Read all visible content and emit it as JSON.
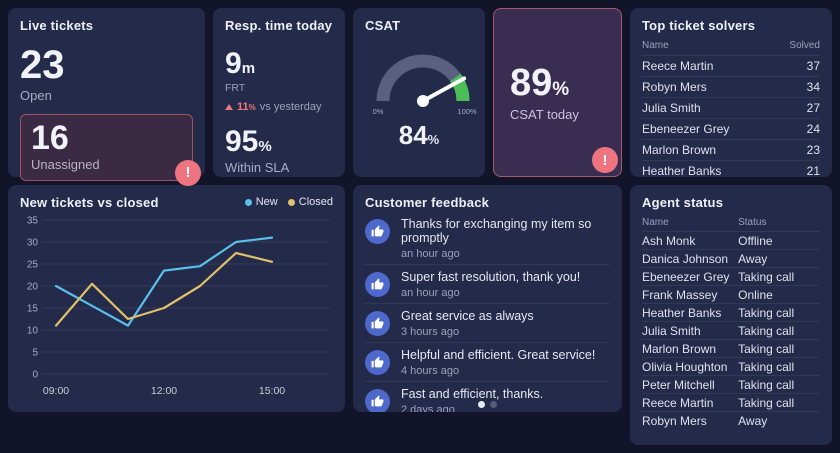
{
  "symbols": {
    "percent": "%",
    "alert": "!"
  },
  "cards": {
    "live_tickets": {
      "title": "Live tickets",
      "open_value": "23",
      "open_label": "Open",
      "unassigned_value": "16",
      "unassigned_label": "Unassigned"
    },
    "resp_time": {
      "title": "Resp. time today",
      "frt_value": "9",
      "frt_unit": "m",
      "frt_label": "FRT",
      "delta_value": "11",
      "delta_label": "vs yesterday",
      "sla_value": "95",
      "sla_label": "Within SLA"
    },
    "csat_today": {
      "value": "89",
      "label": "CSAT today"
    },
    "top_solvers": {
      "title": "Top ticket solvers",
      "columns": [
        "Name",
        "Solved"
      ],
      "rows": [
        [
          "Reece Martin",
          "37"
        ],
        [
          "Robyn Mers",
          "34"
        ],
        [
          "Julia Smith",
          "27"
        ],
        [
          "Ebeneezer Grey",
          "24"
        ],
        [
          "Marlon Brown",
          "23"
        ],
        [
          "Heather Banks",
          "21"
        ]
      ]
    },
    "feedback": {
      "title": "Customer feedback",
      "items": [
        {
          "text": "Thanks for exchanging my item so promptly",
          "time": "an hour ago"
        },
        {
          "text": "Super fast resolution, thank you!",
          "time": "an hour ago"
        },
        {
          "text": "Great service as always",
          "time": "3 hours ago"
        },
        {
          "text": "Helpful and efficient. Great service!",
          "time": "4 hours ago"
        },
        {
          "text": "Fast and efficient, thanks.",
          "time": "2 days ago"
        }
      ],
      "pagination": {
        "count": 2,
        "active": 0
      }
    },
    "agent_status": {
      "title": "Agent status",
      "columns": [
        "Name",
        "Status"
      ],
      "rows": [
        [
          "Ash Monk",
          "Offline"
        ],
        [
          "Danica Johnson",
          "Away"
        ],
        [
          "Ebeneezer Grey",
          "Taking call"
        ],
        [
          "Frank Massey",
          "Online"
        ],
        [
          "Heather Banks",
          "Taking call"
        ],
        [
          "Julia Smith",
          "Taking call"
        ],
        [
          "Marlon Brown",
          "Taking call"
        ],
        [
          "Olivia Houghton",
          "Taking call"
        ],
        [
          "Peter Mitchell",
          "Taking call"
        ],
        [
          "Reece Martin",
          "Taking call"
        ],
        [
          "Robyn Mers",
          "Away"
        ]
      ]
    }
  },
  "chart_data": [
    {
      "type": "line",
      "title": "New tickets vs closed",
      "x": [
        "09:00",
        "10:00",
        "11:00",
        "12:00",
        "13:00",
        "14:00",
        "15:00"
      ],
      "x_shown_ticks": [
        "09:00",
        "12:00",
        "15:00"
      ],
      "series": [
        {
          "name": "New",
          "color": "#58c0ea",
          "values": [
            20,
            15.5,
            11,
            23.5,
            24.5,
            30,
            31
          ]
        },
        {
          "name": "Closed",
          "color": "#dfc269",
          "values": [
            11,
            20.5,
            12.5,
            15,
            20,
            27.5,
            25.5
          ]
        }
      ],
      "ylim": [
        0,
        35
      ],
      "yticks": [
        0,
        5,
        10,
        15,
        20,
        25,
        30,
        35
      ],
      "grid": true,
      "legend_position": "top-right"
    },
    {
      "type": "gauge",
      "title": "CSAT",
      "value": 84,
      "min": 0,
      "max": 100,
      "min_label": "0%",
      "max_label": "100%",
      "value_label": "84",
      "green_zone": [
        80,
        100
      ],
      "colors": {
        "arc": "#5a6080",
        "zone": "#4dbd57",
        "needle": "#ffffff"
      }
    }
  ]
}
